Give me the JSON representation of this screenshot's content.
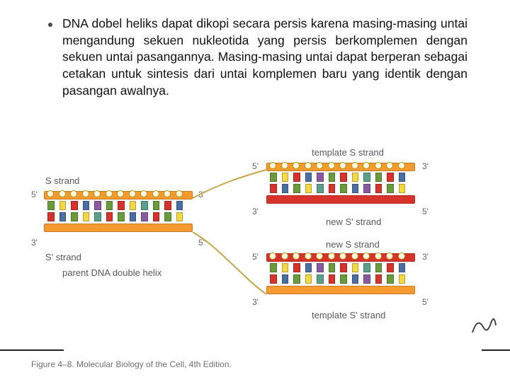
{
  "bullet_text": "DNA dobel heliks dapat dikopi secara persis karena masing-masing untai mengandung sekuen nukleotida yang persis berkomplemen dengan sekuen untai pasangannya. Masing-masing untai dapat berperan sebagai cetakan untuk sintesis dari untai komplemen baru yang identik dengan pasangan awalnya.",
  "labels": {
    "s_strand": "S strand",
    "sp_strand": "S' strand",
    "template_s": "template S strand",
    "template_sp": "template S' strand",
    "new_sp": "new S' strand",
    "new_s": "new S strand",
    "parent": "parent DNA double helix",
    "five": "5'",
    "three": "3'"
  },
  "credit": "Figure 4–8. Molecular Biology of the Cell, 4th Edition.",
  "colors": {
    "orange": "#f59a2e",
    "red": "#d7332a",
    "green": "#6a9b3a",
    "yellow": "#f5d742",
    "blue": "#4a6fa5",
    "purple": "#8a5aa0",
    "teal": "#5aa08a"
  },
  "parent_bases_top": [
    "green",
    "yellow",
    "red",
    "blue",
    "purple",
    "green",
    "red",
    "yellow",
    "teal",
    "green",
    "red",
    "blue"
  ],
  "parent_bases_bottom": [
    "red",
    "blue",
    "green",
    "yellow",
    "teal",
    "red",
    "green",
    "blue",
    "purple",
    "red",
    "green",
    "yellow"
  ],
  "daughter_bases_A_top": [
    "green",
    "yellow",
    "red",
    "blue",
    "purple",
    "green",
    "red",
    "yellow",
    "teal",
    "green",
    "red",
    "blue"
  ],
  "daughter_bases_A_bottom": [
    "red",
    "blue",
    "green",
    "yellow",
    "teal",
    "red",
    "green",
    "blue",
    "purple",
    "red",
    "green",
    "yellow"
  ],
  "daughter_bases_B_top": [
    "green",
    "yellow",
    "red",
    "blue",
    "purple",
    "green",
    "red",
    "yellow",
    "teal",
    "green",
    "red",
    "blue"
  ],
  "daughter_bases_B_bottom": [
    "red",
    "blue",
    "green",
    "yellow",
    "teal",
    "red",
    "green",
    "blue",
    "purple",
    "red",
    "green",
    "yellow"
  ]
}
